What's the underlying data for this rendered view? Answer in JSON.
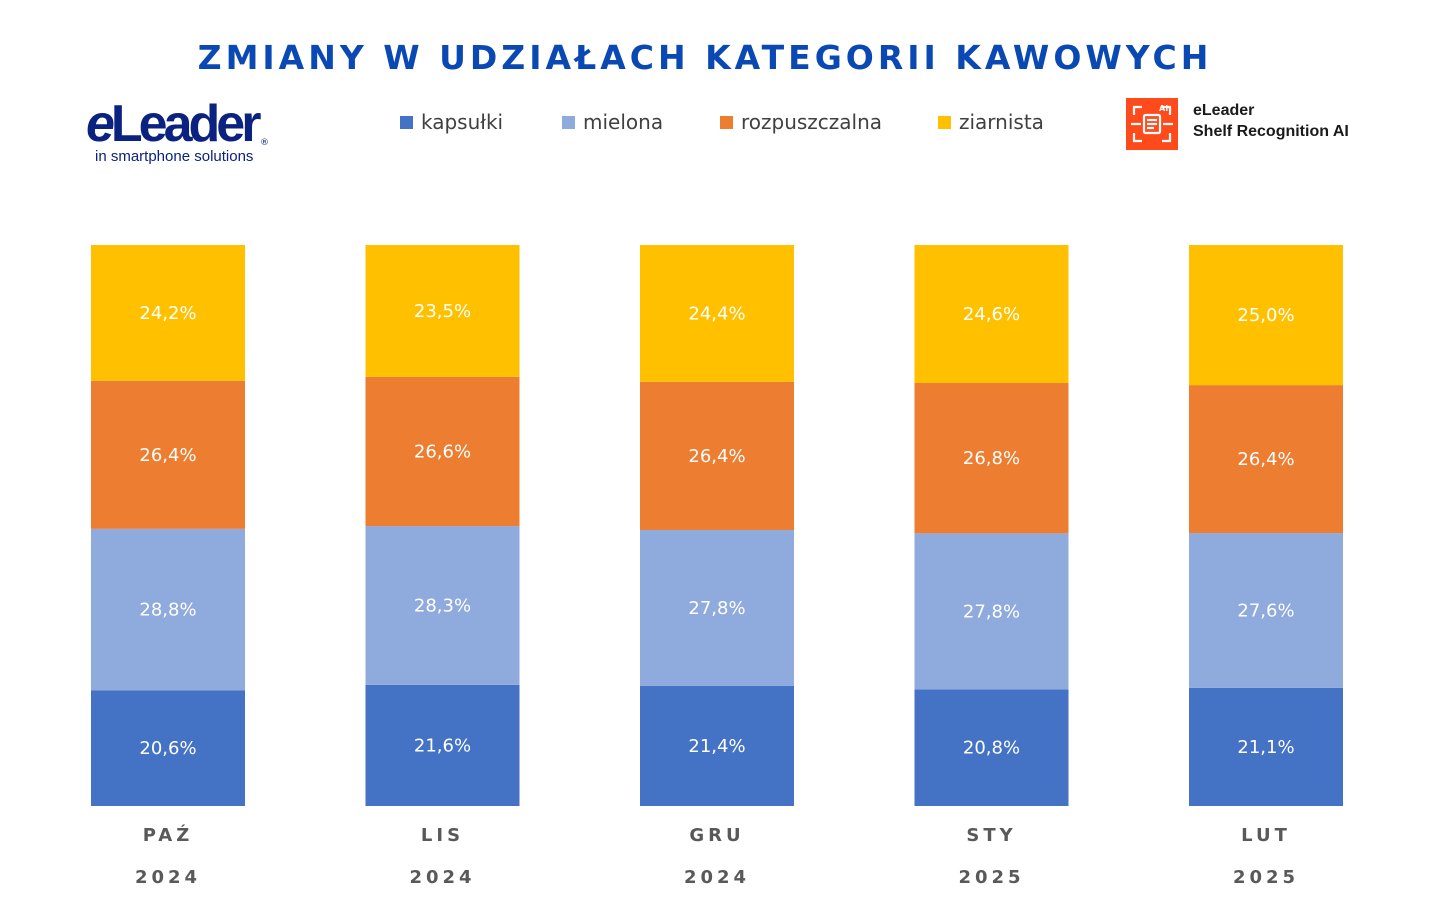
{
  "title": "ZMIANY W UDZIAŁACH KATEGORII KAWOWYCH",
  "logo_left": {
    "tagline": "in smartphone solutions"
  },
  "logo_right": {
    "line1": "eLeader",
    "line2": "Shelf Recognition AI",
    "badge": "AI"
  },
  "colors": {
    "kapsulki": "#4472c4",
    "mielona": "#8faadc",
    "rozpuszczalna": "#ed7d31",
    "ziarnista": "#ffc000"
  },
  "chart_data": {
    "type": "bar",
    "stacked": true,
    "categories": [
      "PAŹ",
      "LIS",
      "GRU",
      "STY",
      "LUT"
    ],
    "years": [
      "2024",
      "2024",
      "2024",
      "2025",
      "2025"
    ],
    "legend_position": "top",
    "grid": false,
    "series": [
      {
        "name": "kapsułki",
        "key": "kapsulki",
        "values": [
          20.6,
          21.6,
          21.4,
          20.8,
          21.1
        ],
        "labels": [
          "20,6%",
          "21,6%",
          "21,4%",
          "20,8%",
          "21,1%"
        ]
      },
      {
        "name": "mielona",
        "key": "mielona",
        "values": [
          28.8,
          28.3,
          27.8,
          27.8,
          27.6
        ],
        "labels": [
          "28,8%",
          "28,3%",
          "27,8%",
          "27,8%",
          "27,6%"
        ]
      },
      {
        "name": "rozpuszczalna",
        "key": "rozpuszczalna",
        "values": [
          26.4,
          26.6,
          26.4,
          26.8,
          26.4
        ],
        "labels": [
          "26,4%",
          "26,6%",
          "26,4%",
          "26,8%",
          "26,4%"
        ]
      },
      {
        "name": "ziarnista",
        "key": "ziarnista",
        "values": [
          24.2,
          23.5,
          24.4,
          24.6,
          25.0
        ],
        "labels": [
          "24,2%",
          "23,5%",
          "24,4%",
          "24,6%",
          "25,0%"
        ]
      }
    ]
  }
}
